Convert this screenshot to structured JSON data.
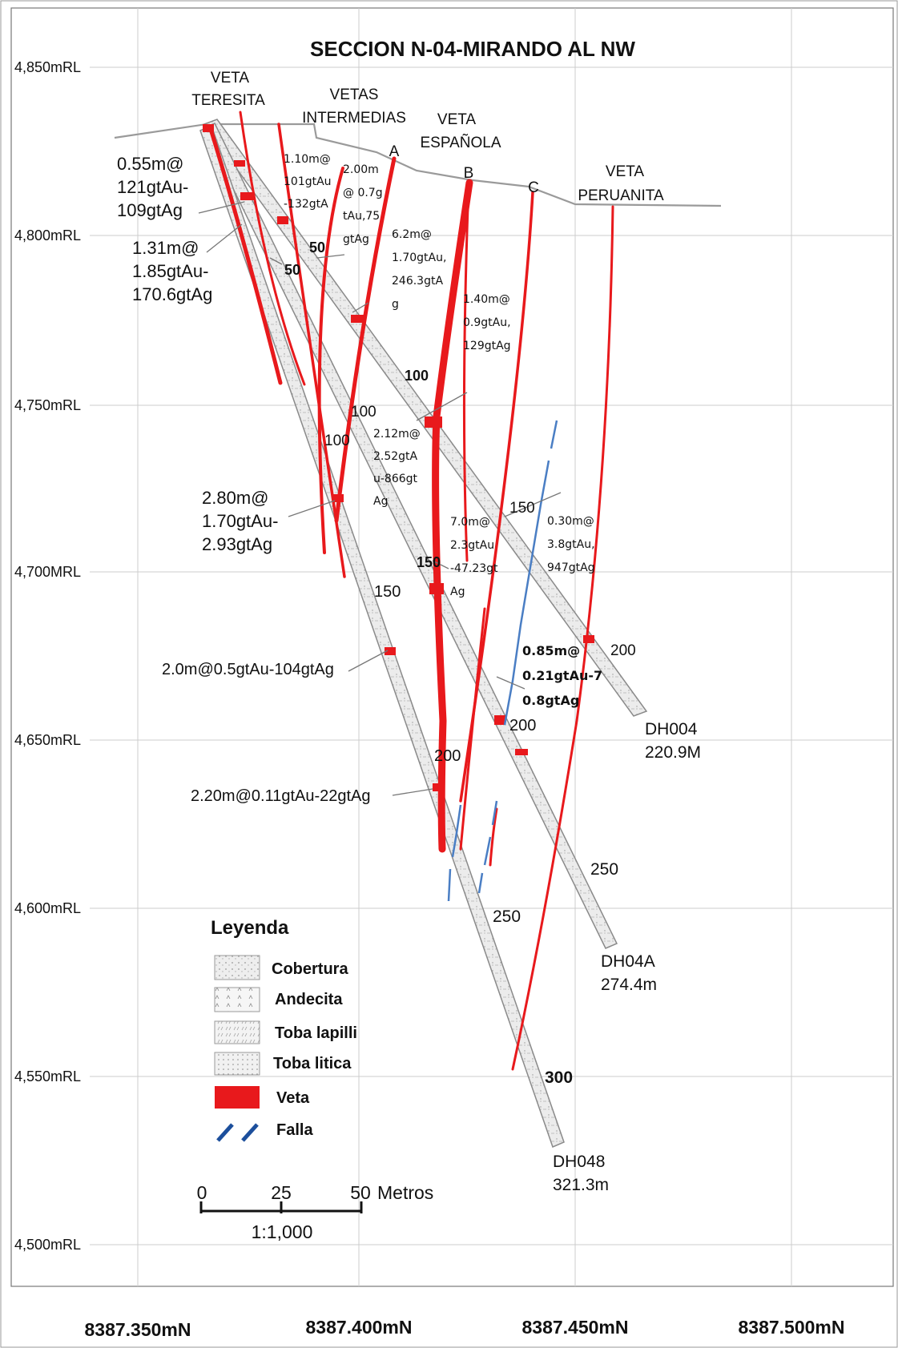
{
  "title": "SECCION N-04-MIRANDO AL NW",
  "elevations": [
    "4,850mRL",
    "4,800mRL",
    "4,750mRL",
    "4,700MRL",
    "4,650mRL",
    "4,600mRL",
    "4,550mRL",
    "4,500mRL"
  ],
  "northings": [
    "8387.350mN",
    "8387.400mN",
    "8387.450mN",
    "8387.500mN"
  ],
  "veins": {
    "teresita": [
      "VETA",
      "TERESITA"
    ],
    "intermedias": [
      "VETAS",
      "INTERMEDIAS"
    ],
    "espanola": [
      "VETA",
      "ESPAÑOLA"
    ],
    "peruanita": [
      "VETA",
      "PERUANITA"
    ],
    "a": "A",
    "b": "B",
    "c": "C"
  },
  "holes": {
    "dh004": [
      "DH004",
      "220.9M"
    ],
    "dh04a": [
      "DH04A",
      "274.4m"
    ],
    "dh048": [
      "DH048",
      "321.3m"
    ]
  },
  "depth_marks": {
    "d50a": "50",
    "d50b": "50",
    "d100a": "100",
    "d100b": "100",
    "d100c": "100",
    "d150a": "150",
    "d150b": "150",
    "d150c": "150",
    "d200a": "200",
    "d200b": "200",
    "d200c": "200",
    "d250a": "250",
    "d250b": "250",
    "d300": "300"
  },
  "assays": {
    "a1": [
      "0.55m@",
      "121gtAu-",
      "109gtAg"
    ],
    "a2": [
      "1.31m@",
      "1.85gtAu-",
      "170.6gtAg"
    ],
    "a3": [
      "1.10m@",
      "101gtAu",
      "-132gtA"
    ],
    "a4": [
      "2.00m",
      "@ 0.7g",
      "tAu,75",
      "gtAg"
    ],
    "a5": [
      "6.2m@",
      "1.70gtAu,",
      "246.3gtA",
      "g"
    ],
    "a6": [
      "1.40m@",
      "0.9gtAu,",
      "129gtAg"
    ],
    "a7": [
      "2.12m@",
      "2.52gtA",
      "u-866gt",
      "Ag"
    ],
    "a8": [
      "2.80m@",
      "1.70gtAu-",
      "2.93gtAg"
    ],
    "a9": [
      "7.0m@",
      "2.3gtAu",
      "-47.23gt",
      "Ag"
    ],
    "a10": [
      "0.30m@",
      "3.8gtAu,",
      "947gtAg"
    ],
    "a11": "2.0m@0.5gtAu-104gtAg",
    "a12": [
      "0.85m@",
      "0.21gtAu-7",
      "0.8gtAg"
    ],
    "a13": "2.20m@0.11gtAu-22gtAg"
  },
  "legend": {
    "title": "Leyenda",
    "items": [
      "Cobertura",
      "Andecita",
      "Toba lapilli",
      "Toba litica",
      "Veta",
      "Falla"
    ]
  },
  "scale": {
    "ticks": [
      "0",
      "25",
      "50"
    ],
    "unit": "Metros",
    "ratio": "1:1,000"
  },
  "colors": {
    "vein": "#e8191c",
    "fault": "#4a7ec4",
    "grid": "#cccccc",
    "drill": "#9a9a9a"
  }
}
